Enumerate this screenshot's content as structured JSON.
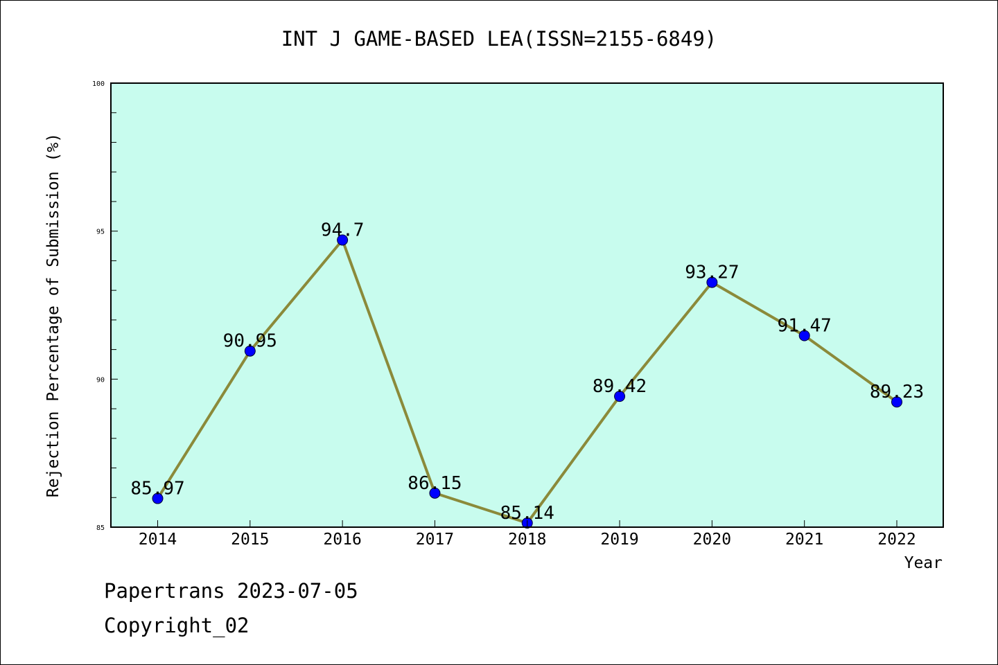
{
  "chart_data": {
    "type": "line",
    "title": "INT J GAME-BASED LEA(ISSN=2155-6849)",
    "xlabel": "Year",
    "ylabel": "Rejection Percentage of Submission (%)",
    "categories": [
      "2014",
      "2015",
      "2016",
      "2017",
      "2018",
      "2019",
      "2020",
      "2021",
      "2022"
    ],
    "values": [
      85.97,
      90.95,
      94.7,
      86.15,
      85.14,
      89.42,
      93.27,
      91.47,
      89.23
    ],
    "data_labels": [
      "85.97",
      "90.95",
      "94.7",
      "86.15",
      "85.14",
      "89.42",
      "93.27",
      "91.47",
      "89.23"
    ],
    "ylim": [
      85,
      100
    ],
    "yticks": [
      "85",
      "90",
      "95",
      "100"
    ],
    "grid": false,
    "colors": {
      "plot_background": "#c8fcee",
      "line": "#8b8a3a",
      "marker": "#0000ff"
    }
  },
  "footer": {
    "line1": "Papertrans 2023-07-05",
    "line2": "Copyright_02"
  }
}
